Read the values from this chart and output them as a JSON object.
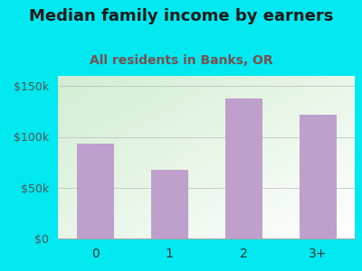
{
  "categories": [
    "0",
    "1",
    "2",
    "3+"
  ],
  "values": [
    93000,
    68000,
    138000,
    122000
  ],
  "bar_color": "#bf9fcc",
  "title": "Median family income by earners",
  "subtitle": "All residents in Banks, OR",
  "title_fontsize": 13,
  "subtitle_fontsize": 10,
  "title_color": "#1a1a1a",
  "subtitle_color": "#7a5050",
  "ylim": [
    0,
    160000
  ],
  "yticks": [
    0,
    50000,
    100000,
    150000
  ],
  "ytick_labels": [
    "$0",
    "$50k",
    "$100k",
    "$150k"
  ],
  "outer_bg": "#00e8f0",
  "plot_bg_topleft": [
    0.82,
    0.93,
    0.82
  ],
  "plot_bg_bottomright": [
    1.0,
    1.0,
    1.0
  ]
}
